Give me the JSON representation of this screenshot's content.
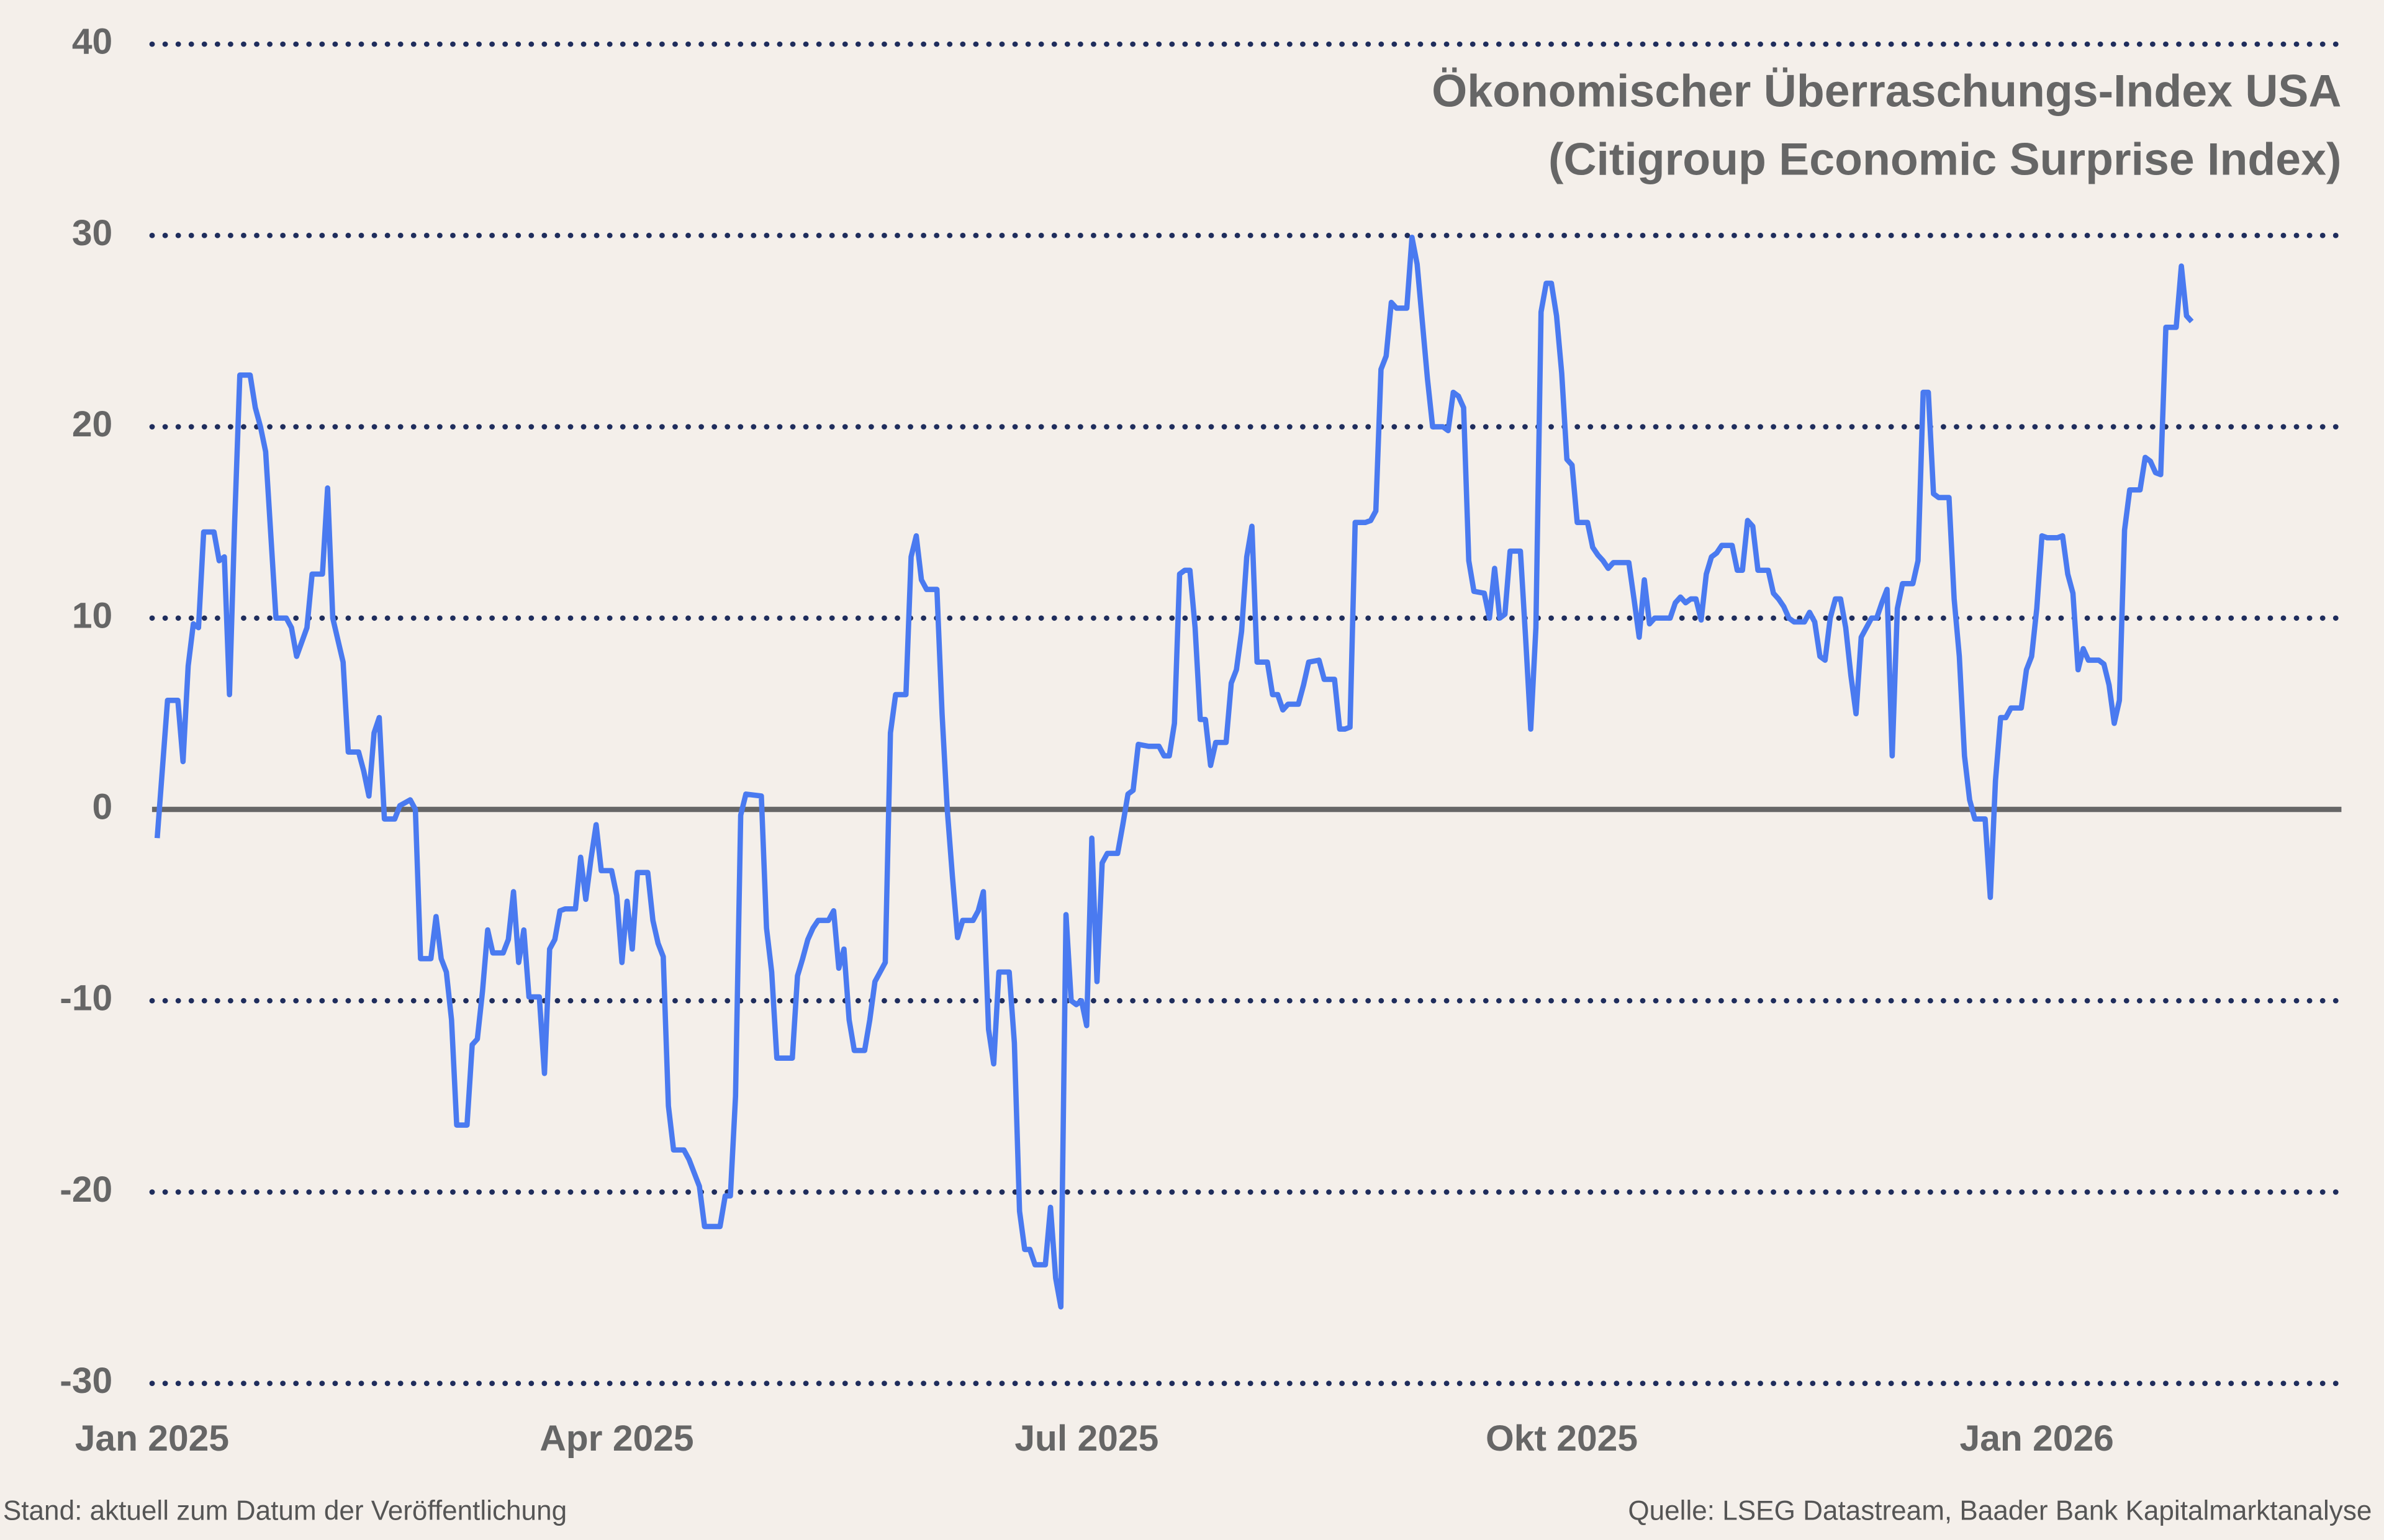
{
  "chart_data": {
    "type": "line",
    "title": "Ökonomischer Überraschungs-Index USA",
    "subtitle": "(Citigroup Economic Surprise Index)",
    "footnote": "Stand: aktuell zum Datum der Veröffentlichung",
    "source": "Quelle: LSEG Datastream, Baader Bank Kapitalmarktanalyse",
    "xlim": [
      0,
      424
    ],
    "xticks": [
      {
        "value": 0,
        "label": "Jan 2025"
      },
      {
        "value": 90,
        "label": "Apr 2025"
      },
      {
        "value": 181,
        "label": "Jul 2025"
      },
      {
        "value": 273,
        "label": "Okt 2025"
      },
      {
        "value": 365,
        "label": "Jan 2026"
      }
    ],
    "ylim": [
      -30,
      40
    ],
    "yticks": [
      -30,
      -20,
      -10,
      0,
      10,
      20,
      30,
      40
    ],
    "grid": true,
    "series": [
      {
        "color": "#4a7af0",
        "x": [
          1,
          3,
          5,
          6,
          7,
          8,
          9,
          10,
          12,
          13,
          14,
          15,
          16,
          17,
          19,
          20,
          21,
          22,
          24,
          26,
          27,
          28,
          30,
          31,
          33,
          34,
          35,
          37,
          38,
          40,
          41,
          42,
          43,
          44,
          45,
          47,
          48,
          50,
          51,
          52,
          54,
          55,
          56,
          57,
          58,
          59,
          61,
          62,
          63,
          64,
          65,
          66,
          68,
          69,
          70,
          71,
          72,
          73,
          75,
          76,
          77,
          78,
          79,
          80,
          82,
          83,
          84,
          85,
          86,
          87,
          89,
          90,
          91,
          92,
          93,
          94,
          96,
          97,
          98,
          99,
          100,
          101,
          103,
          104,
          105,
          106,
          107,
          110,
          111,
          112,
          113,
          114,
          115,
          118,
          119,
          120,
          121,
          124,
          125,
          126,
          127,
          128,
          129,
          131,
          132,
          133,
          134,
          135,
          136,
          138,
          139,
          140,
          142,
          143,
          144,
          146,
          147,
          148,
          149,
          150,
          152,
          153,
          154,
          155,
          156,
          157,
          159,
          160,
          161,
          162,
          163,
          164,
          166,
          167,
          168,
          169,
          170,
          171,
          173,
          174,
          175,
          176,
          177,
          178,
          179,
          180,
          181,
          182,
          183,
          184,
          185,
          187,
          188,
          189,
          190,
          191,
          193,
          195,
          196,
          197,
          198,
          199,
          200,
          201,
          202,
          203,
          204,
          205,
          206,
          208,
          209,
          210,
          211,
          212,
          213,
          214,
          216,
          217,
          218,
          219,
          220,
          222,
          223,
          224,
          226,
          227,
          229,
          230,
          231,
          232,
          233,
          235,
          236,
          237,
          238,
          239,
          240,
          241,
          243,
          244,
          245,
          246,
          247,
          248,
          250,
          251,
          252,
          253,
          254,
          255,
          256,
          258,
          259,
          260,
          261,
          262,
          263,
          265,
          266,
          267,
          268,
          269,
          270,
          271,
          272,
          273,
          274,
          275,
          276,
          278,
          279,
          280,
          281,
          282,
          283,
          286,
          287,
          288,
          289,
          290,
          291,
          293,
          294,
          295,
          296,
          297,
          298,
          299,
          300,
          301,
          302,
          303,
          304,
          306,
          307,
          308,
          309,
          310,
          311,
          313,
          314,
          315,
          316,
          317,
          318,
          320,
          321,
          322,
          323,
          324,
          325,
          326,
          327,
          328,
          329,
          330,
          331,
          332,
          333,
          334,
          335,
          336,
          337,
          338,
          339,
          341,
          342,
          343,
          344,
          345,
          346,
          348,
          349,
          350,
          351,
          352,
          353,
          355,
          356,
          357,
          358,
          359,
          360,
          362,
          363,
          364,
          365,
          366,
          367,
          369,
          370,
          371,
          372,
          373,
          374,
          375,
          377,
          378,
          379,
          380,
          381,
          382,
          383,
          385,
          386,
          387,
          388,
          389,
          390,
          391,
          392,
          393,
          394,
          395
        ],
        "values": [
          -1.5,
          5.7,
          5.7,
          2.5,
          7.5,
          9.7,
          9.5,
          14.5,
          14.5,
          13,
          13.2,
          6,
          15,
          22.7,
          22.7,
          21,
          20,
          18.7,
          10,
          10,
          9.5,
          8,
          9.5,
          12.3,
          12.3,
          16.8,
          10,
          7.7,
          3,
          3,
          2,
          0.7,
          4,
          4.8,
          -0.5,
          -0.5,
          0.2,
          0.5,
          0,
          -7.8,
          -7.8,
          -5.6,
          -7.8,
          -8.5,
          -11,
          -16.5,
          -16.5,
          -12.3,
          -12,
          -9.5,
          -6.3,
          -7.5,
          -7.5,
          -6.8,
          -4.3,
          -8,
          -6.3,
          -9.8,
          -9.8,
          -13.8,
          -7.3,
          -6.8,
          -5.3,
          -5.2,
          -5.2,
          -2.5,
          -4.7,
          -2.6,
          -0.8,
          -3.2,
          -3.2,
          -4.5,
          -8,
          -4.8,
          -7.3,
          -3.3,
          -3.3,
          -5.8,
          -7,
          -7.7,
          -15.5,
          -17.8,
          -17.8,
          -18.3,
          -19,
          -19.7,
          -21.8,
          -21.8,
          -20.2,
          -20.2,
          -15,
          -0.3,
          0.8,
          0.7,
          -6.2,
          -8.5,
          -13,
          -13,
          -8.7,
          -7.8,
          -6.8,
          -6.2,
          -5.8,
          -5.8,
          -5.3,
          -8.3,
          -7.3,
          -11,
          -12.6,
          -12.6,
          -11,
          -9,
          -8,
          4,
          6,
          6,
          13.2,
          14.3,
          12,
          11.5,
          11.5,
          5,
          0,
          -3.5,
          -6.7,
          -5.8,
          -5.8,
          -5.3,
          -4.3,
          -11.5,
          -13.3,
          -8.5,
          -8.5,
          -12.2,
          -21,
          -23,
          -23,
          -23.8,
          -23.8,
          -20.8,
          -24.5,
          -26,
          -5.5,
          -10,
          -10.2,
          -10,
          -11.3,
          -1.5,
          -9,
          -2.8,
          -2.3,
          -2.3,
          -0.8,
          0.8,
          1,
          3.4,
          3.3,
          3.3,
          2.8,
          2.8,
          4.5,
          12.3,
          12.5,
          12.5,
          9.5,
          4.7,
          4.7,
          2.3,
          3.5,
          3.5,
          6.6,
          7.3,
          9.3,
          13.2,
          14.8,
          7.7,
          7.7,
          6,
          6,
          5.2,
          5.5,
          5.5,
          6.5,
          7.7,
          7.8,
          6.8,
          6.8,
          4.2,
          4.2,
          4.3,
          15,
          15,
          15.1,
          15.6,
          23,
          23.7,
          26.5,
          26.2,
          26.2,
          29.9,
          28.5,
          25.5,
          22.5,
          20,
          20,
          19.8,
          21.8,
          21.6,
          21,
          13,
          11.4,
          11.3,
          10,
          12.6,
          10,
          10.2,
          13.5,
          13.5,
          9,
          4.2,
          9.5,
          26,
          27.5,
          27.5,
          25.8,
          22.8,
          18.3,
          18,
          15,
          15,
          13.7,
          13.3,
          13,
          12.6,
          12.9,
          12.9,
          11,
          9,
          12,
          9.7,
          10,
          10,
          10,
          10.8,
          11.1,
          10.8,
          11,
          11,
          9.9,
          12.3,
          13.2,
          13.4,
          13.8,
          13.8,
          12.5,
          12.5,
          15.1,
          14.8,
          12.5,
          12.5,
          11.3,
          11,
          10.6,
          10,
          9.8,
          9.8,
          10.3,
          9.8,
          8,
          7.8,
          10,
          11,
          11,
          9.5,
          7,
          5,
          9,
          9.5,
          10,
          10,
          10.8,
          11.5,
          2.8,
          10.5,
          11.8,
          11.8,
          13,
          21.8,
          21.8,
          16.5,
          16.3,
          16.3,
          11,
          8,
          2.8,
          0.5,
          -0.5,
          -0.5,
          -4.6,
          1.5,
          4.8,
          4.8,
          5.3,
          5.3,
          7.3,
          8,
          10.5,
          14.3,
          14.2,
          14.2,
          14.3,
          12.3,
          11.3,
          7.3,
          8.4,
          7.8,
          7.8,
          7.6,
          6.5,
          4.5,
          5.7,
          14.6,
          16.7,
          16.7,
          18.4,
          18.2,
          17.6,
          17.5,
          25.2,
          25.2,
          25.2,
          28.4,
          25.8,
          25.5
        ]
      }
    ]
  }
}
